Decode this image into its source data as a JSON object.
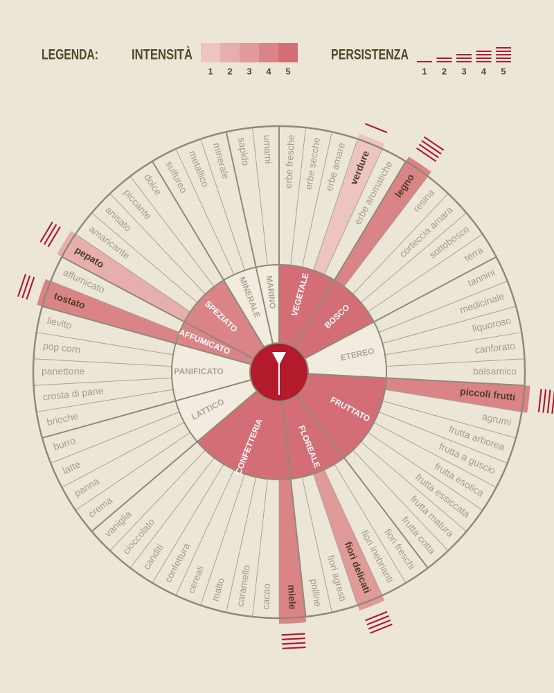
{
  "legend": {
    "title": "LEGENDA:",
    "intensity": {
      "label": "INTENSITÀ",
      "levels": [
        1,
        2,
        3,
        4,
        5
      ]
    },
    "persistence": {
      "label": "PERSISTENZA",
      "levels": [
        1,
        2,
        3,
        4,
        5
      ]
    },
    "colors": [
      "#ecc4c1",
      "#e6aeac",
      "#e09a9a",
      "#da8488",
      "#d46e76"
    ]
  },
  "wheel": {
    "categories": [
      {
        "label": "VEGETALE",
        "intensity": 5,
        "descriptors": [
          {
            "label": "erbe fresche"
          },
          {
            "label": "erbe secche"
          },
          {
            "label": "erbe amare"
          },
          {
            "label": "verdure",
            "intensity": 1,
            "persistence": 1
          },
          {
            "label": "erbe aromatiche"
          }
        ]
      },
      {
        "label": "BOSCO",
        "intensity": 5,
        "descriptors": [
          {
            "label": "legno",
            "intensity": 4,
            "persistence": 4
          },
          {
            "label": "resina"
          },
          {
            "label": "corteccia amara"
          },
          {
            "label": "sottobosco"
          },
          {
            "label": "terra"
          }
        ]
      },
      {
        "label": "ETEREO",
        "descriptors": [
          {
            "label": "tannini"
          },
          {
            "label": "medicinale"
          },
          {
            "label": "liquoroso"
          },
          {
            "label": "canforato"
          },
          {
            "label": "balsamico"
          }
        ]
      },
      {
        "label": "FRUTTATO",
        "intensity": 5,
        "descriptors": [
          {
            "label": "piccoli frutti",
            "intensity": 4,
            "persistence": 4
          },
          {
            "label": "agrumi"
          },
          {
            "label": "frutta arborea"
          },
          {
            "label": "frutta a guscio"
          },
          {
            "label": "frutta esotica"
          },
          {
            "label": "frutta essiccata"
          },
          {
            "label": "frutta matura"
          },
          {
            "label": "frutta cotta"
          }
        ]
      },
      {
        "label": "FLOREALE",
        "intensity": 5,
        "descriptors": [
          {
            "label": "fiori freschi"
          },
          {
            "label": "fiori inebrianti"
          },
          {
            "label": "fiori delicati",
            "intensity": 3,
            "persistence": 4
          },
          {
            "label": "fiori agresti"
          },
          {
            "label": "polline"
          }
        ]
      },
      {
        "label": "CONFETTERIA",
        "intensity": 5,
        "descriptors": [
          {
            "label": "miele",
            "intensity": 4,
            "persistence": 4
          },
          {
            "label": "cacao"
          },
          {
            "label": "caramello"
          },
          {
            "label": "malto"
          },
          {
            "label": "cereali"
          },
          {
            "label": "confettura"
          },
          {
            "label": "canditi"
          },
          {
            "label": "cioccolato"
          },
          {
            "label": "vaniglia"
          }
        ]
      },
      {
        "label": "LATTICO",
        "descriptors": [
          {
            "label": "crema"
          },
          {
            "label": "panna"
          },
          {
            "label": "latte"
          },
          {
            "label": "burro"
          }
        ]
      },
      {
        "label": "PANIFICATO",
        "descriptors": [
          {
            "label": "brioche"
          },
          {
            "label": "crosta di pane"
          },
          {
            "label": "panettone"
          },
          {
            "label": "pop corn"
          },
          {
            "label": "lievito"
          }
        ]
      },
      {
        "label": "AFFUMICATO",
        "intensity": 4,
        "descriptors": [
          {
            "label": "tostato",
            "intensity": 4,
            "persistence": 3
          },
          {
            "label": "affumicato"
          }
        ]
      },
      {
        "label": "SPEZIATO",
        "intensity": 4,
        "descriptors": [
          {
            "label": "pepato",
            "intensity": 2,
            "persistence": 3
          },
          {
            "label": "amaricante"
          },
          {
            "label": "anisato"
          },
          {
            "label": "piccante"
          },
          {
            "label": "dolce"
          }
        ]
      },
      {
        "label": "MINERALE",
        "descriptors": [
          {
            "label": "sulfureo"
          },
          {
            "label": "metallico"
          },
          {
            "label": "minerale"
          }
        ]
      },
      {
        "label": "MARINO",
        "descriptors": [
          {
            "label": "sapido"
          },
          {
            "label": "umami"
          }
        ]
      }
    ]
  }
}
